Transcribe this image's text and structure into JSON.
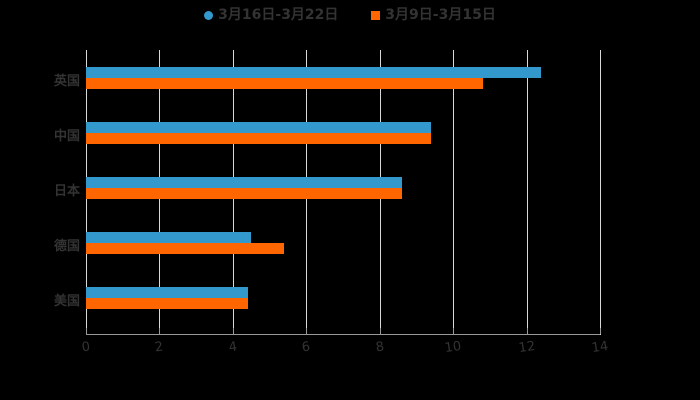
{
  "chart_data": {
    "type": "bar",
    "orientation": "horizontal",
    "title": "",
    "categories": [
      "英国",
      "中国",
      "日本",
      "德国",
      "美国"
    ],
    "series": [
      {
        "name": "3月16日-3月22日",
        "color": "#3399cc",
        "values": [
          12.4,
          9.4,
          8.6,
          4.5,
          4.4
        ]
      },
      {
        "name": "3月9日-3月15日",
        "color": "#ff6600",
        "values": [
          10.8,
          9.4,
          8.6,
          5.4,
          4.4
        ]
      }
    ],
    "xlim": [
      0,
      14
    ],
    "xticks": [
      "0",
      "2",
      "4",
      "6",
      "8",
      "10",
      "12",
      "14"
    ],
    "grid": true,
    "legend_position": "top"
  },
  "legend": {
    "s1": "3月16日-3月22日",
    "s2": "3月9日-3月15日"
  }
}
